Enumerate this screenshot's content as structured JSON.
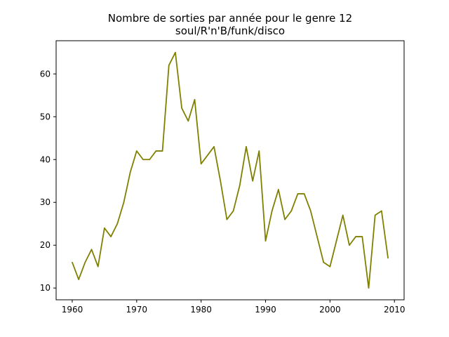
{
  "chart_data": {
    "type": "line",
    "title_lines": [
      "Nombre de sorties par année pour le genre 12",
      "soul/R'n'B/funk/disco"
    ],
    "xlabel": "",
    "ylabel": "",
    "xlim": [
      1957.5,
      2011.5
    ],
    "ylim": [
      7.25,
      67.75
    ],
    "x_ticks": [
      1960,
      1970,
      1980,
      1990,
      2000,
      2010
    ],
    "y_ticks": [
      10,
      20,
      30,
      40,
      50,
      60
    ],
    "grid": false,
    "line_color": "#808000",
    "series": [
      {
        "x": [
          1960,
          1961,
          1962,
          1963,
          1964,
          1965,
          1966,
          1967,
          1968,
          1969,
          1970,
          1971,
          1972,
          1973,
          1974,
          1975,
          1976,
          1977,
          1978,
          1979,
          1980,
          1981,
          1982,
          1983,
          1984,
          1985,
          1986,
          1987,
          1988,
          1989,
          1990,
          1991,
          1992,
          1993,
          1994,
          1995,
          1996,
          1997,
          1998,
          1999,
          2000,
          2001,
          2002,
          2003,
          2004,
          2005,
          2006,
          2007,
          2008,
          2009
        ],
        "y": [
          16,
          12,
          16,
          19,
          15,
          24,
          22,
          25,
          30,
          37,
          42,
          40,
          40,
          42,
          42,
          62,
          65,
          52,
          49,
          54,
          39,
          41,
          43,
          35,
          26,
          28,
          34,
          43,
          35,
          42,
          21,
          28,
          33,
          26,
          28,
          32,
          32,
          28,
          22,
          16,
          15,
          21,
          27,
          20,
          22,
          22,
          10,
          27,
          28,
          17
        ]
      }
    ]
  }
}
